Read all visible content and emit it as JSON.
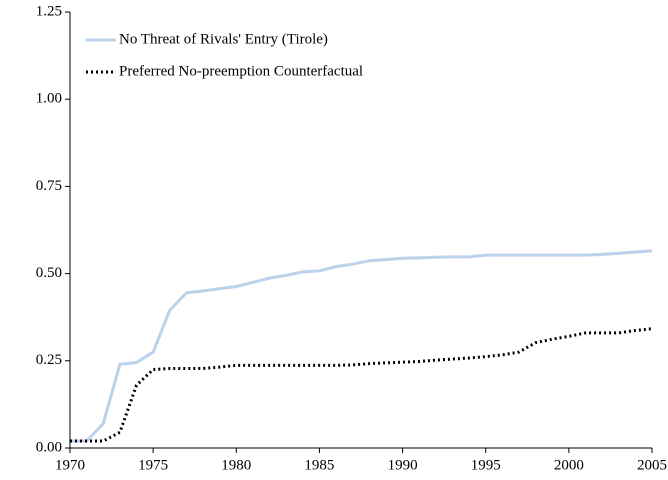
{
  "chart_data": {
    "type": "line",
    "x": [
      1970,
      1971,
      1972,
      1973,
      1974,
      1975,
      1976,
      1977,
      1978,
      1979,
      1980,
      1981,
      1982,
      1983,
      1984,
      1985,
      1986,
      1987,
      1988,
      1989,
      1990,
      1991,
      1992,
      1993,
      1994,
      1995,
      1996,
      1997,
      1998,
      1999,
      2000,
      2001,
      2002,
      2003,
      2004,
      2005
    ],
    "series": [
      {
        "name": "No Threat of Rivals' Entry (Tirole)",
        "color": "#bcd2ea",
        "dash": "solid",
        "values": [
          0.02,
          0.02,
          0.07,
          0.24,
          0.245,
          0.275,
          0.395,
          0.445,
          0.45,
          0.457,
          0.463,
          0.475,
          0.487,
          0.495,
          0.505,
          0.508,
          0.52,
          0.527,
          0.537,
          0.54,
          0.544,
          0.545,
          0.547,
          0.548,
          0.548,
          0.553,
          0.553,
          0.553,
          0.553,
          0.553,
          0.553,
          0.553,
          0.555,
          0.558,
          0.562,
          0.565
        ]
      },
      {
        "name": "Preferred No-preemption Counterfactual",
        "color": "#000000",
        "dash": "dotted",
        "values": [
          0.02,
          0.02,
          0.02,
          0.045,
          0.18,
          0.225,
          0.228,
          0.228,
          0.228,
          0.232,
          0.237,
          0.237,
          0.237,
          0.237,
          0.237,
          0.237,
          0.237,
          0.238,
          0.242,
          0.244,
          0.246,
          0.248,
          0.252,
          0.255,
          0.258,
          0.262,
          0.267,
          0.275,
          0.302,
          0.312,
          0.32,
          0.33,
          0.33,
          0.33,
          0.337,
          0.342
        ]
      }
    ],
    "xlim": [
      1970,
      2005
    ],
    "xticks": [
      1970,
      1975,
      1980,
      1985,
      1990,
      1995,
      2000,
      2005
    ],
    "ylim": [
      0,
      1.25
    ],
    "yticks": [
      {
        "value": 0,
        "label": "0.00"
      },
      {
        "value": 0.25,
        "label": "0.25"
      },
      {
        "value": 0.5,
        "label": "0.50"
      },
      {
        "value": 0.75,
        "label": "0.75"
      },
      {
        "value": 1,
        "label": "1.00"
      },
      {
        "value": 1.25,
        "label": "1.25"
      }
    ],
    "grid": false,
    "legend": "top-left"
  }
}
